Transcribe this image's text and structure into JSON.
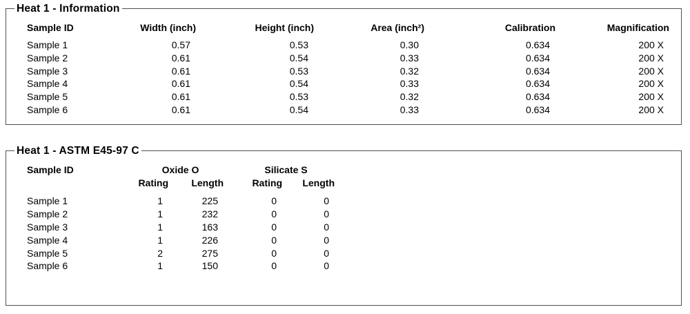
{
  "colors": {
    "text": "#000000",
    "border": "#4f4f4f",
    "background": "#ffffff"
  },
  "info": {
    "title": "Heat 1 - Information",
    "columns": [
      "Sample ID",
      "Width (inch)",
      "Height (inch)",
      "Area (inch²)",
      "Calibration",
      "Magnification"
    ],
    "rows": [
      [
        "Sample 1",
        "0.57",
        "0.53",
        "0.30",
        "0.634",
        "200 X"
      ],
      [
        "Sample 2",
        "0.61",
        "0.54",
        "0.33",
        "0.634",
        "200 X"
      ],
      [
        "Sample 3",
        "0.61",
        "0.53",
        "0.32",
        "0.634",
        "200 X"
      ],
      [
        "Sample 4",
        "0.61",
        "0.54",
        "0.33",
        "0.634",
        "200 X"
      ],
      [
        "Sample 5",
        "0.61",
        "0.53",
        "0.32",
        "0.634",
        "200 X"
      ],
      [
        "Sample 6",
        "0.61",
        "0.54",
        "0.33",
        "0.634",
        "200 X"
      ]
    ]
  },
  "astm": {
    "title": "Heat 1 - ASTM E45-97 C",
    "sample_id_header": "Sample ID",
    "group_headers": {
      "oxide": "Oxide O",
      "silicate": "Silicate S"
    },
    "sub_headers": {
      "oxide_rating": "Rating",
      "oxide_length": "Length",
      "silicate_rating": "Rating",
      "silicate_length": "Length"
    },
    "rows": [
      [
        "Sample 1",
        "1",
        "225",
        "0",
        "0"
      ],
      [
        "Sample 2",
        "1",
        "232",
        "0",
        "0"
      ],
      [
        "Sample 3",
        "1",
        "163",
        "0",
        "0"
      ],
      [
        "Sample 4",
        "1",
        "226",
        "0",
        "0"
      ],
      [
        "Sample 5",
        "2",
        "275",
        "0",
        "0"
      ],
      [
        "Sample 6",
        "1",
        "150",
        "0",
        "0"
      ]
    ]
  }
}
